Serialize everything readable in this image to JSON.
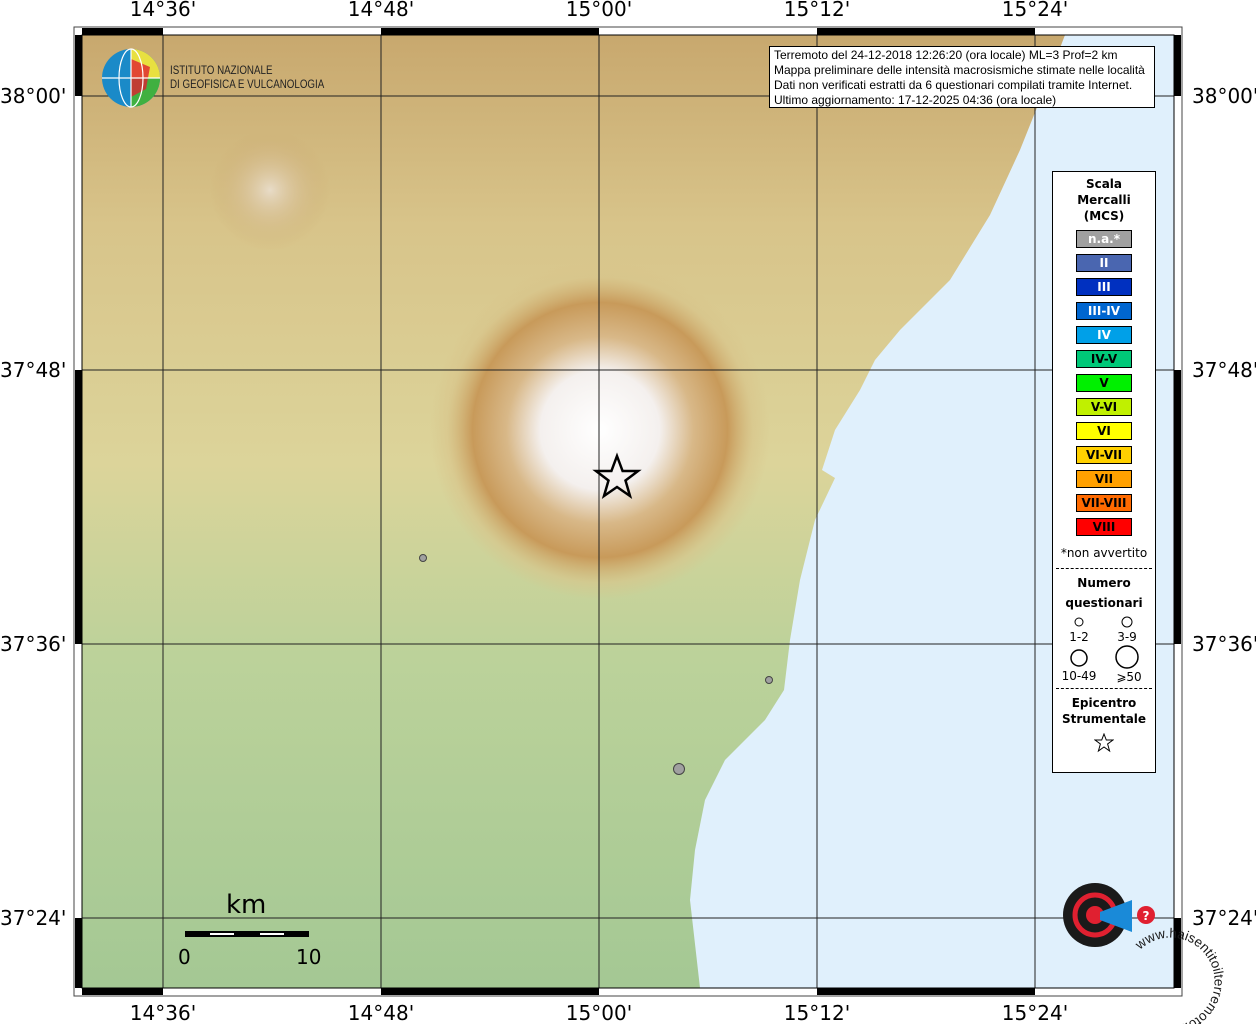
{
  "map": {
    "lon_labels": [
      "14°36'",
      "14°48'",
      "15°00'",
      "15°12'",
      "15°24'"
    ],
    "lat_labels": [
      "38°00'",
      "37°48'",
      "37°36'",
      "37°24'"
    ],
    "colors": {
      "sea": "#e0f0fc",
      "lowland": "#a8cc98",
      "highland": "#c8a468",
      "summit": "#ffffff"
    }
  },
  "logo": {
    "line1": "ISTITUTO NAZIONALE",
    "line2": "DI GEOFISICA E VULCANOLOGIA",
    "icon": "ingv-globe-logo"
  },
  "info": {
    "line1": "Terremoto del 24-12-2018 12:26:20 (ora locale) ML=3 Prof=2 km",
    "line2": "Mappa preliminare delle intensità macrosismiche stimate nelle località",
    "line3": "Dati non verificati estratti da 6 questionari compilati tramite Internet.",
    "line4": "Ultimo aggiornamento: 17-12-2025 04:36 (ora locale)"
  },
  "legend": {
    "title": [
      "Scala",
      "Mercalli",
      "(MCS)"
    ],
    "scale": [
      {
        "label": "n.a.*",
        "color": "#a0a0a0",
        "text": "#ffffff"
      },
      {
        "label": "II",
        "color": "#4a66b0",
        "text": "#ffffff"
      },
      {
        "label": "III",
        "color": "#0030c0",
        "text": "#ffffff"
      },
      {
        "label": "III-IV",
        "color": "#0066d0",
        "text": "#ffffff"
      },
      {
        "label": "IV",
        "color": "#00a0e8",
        "text": "#ffffff"
      },
      {
        "label": "IV-V",
        "color": "#00c878",
        "text": "#000000"
      },
      {
        "label": "V",
        "color": "#00f000",
        "text": "#000000"
      },
      {
        "label": "V-VI",
        "color": "#c0f000",
        "text": "#000000"
      },
      {
        "label": "VI",
        "color": "#ffff00",
        "text": "#000000"
      },
      {
        "label": "VI-VII",
        "color": "#ffd000",
        "text": "#000000"
      },
      {
        "label": "VII",
        "color": "#ffa000",
        "text": "#000000"
      },
      {
        "label": "VII-VIII",
        "color": "#ff6a00",
        "text": "#000000"
      },
      {
        "label": "VIII",
        "color": "#ff0000",
        "text": "#000000"
      }
    ],
    "note": "*non avvertito",
    "count_title": [
      "Numero",
      "questionari"
    ],
    "counts": [
      "1-2",
      "3-9",
      "10-49",
      "⩾50"
    ],
    "epi_title": [
      "Epicentro",
      "Strumentale"
    ]
  },
  "scale_bar": {
    "unit": "km",
    "min": "0",
    "max": "10"
  },
  "points": [
    {
      "name": "locality-point",
      "size": "1-2",
      "color": "#a0a0a0"
    },
    {
      "name": "locality-point",
      "size": "1-2",
      "color": "#a0a0a0"
    },
    {
      "name": "locality-point",
      "size": "3-9",
      "color": "#a0a0a0"
    }
  ],
  "badge": {
    "text": "www.haisentitoilterremoto.it",
    "icon": "haisentitoilterremoto-logo"
  }
}
